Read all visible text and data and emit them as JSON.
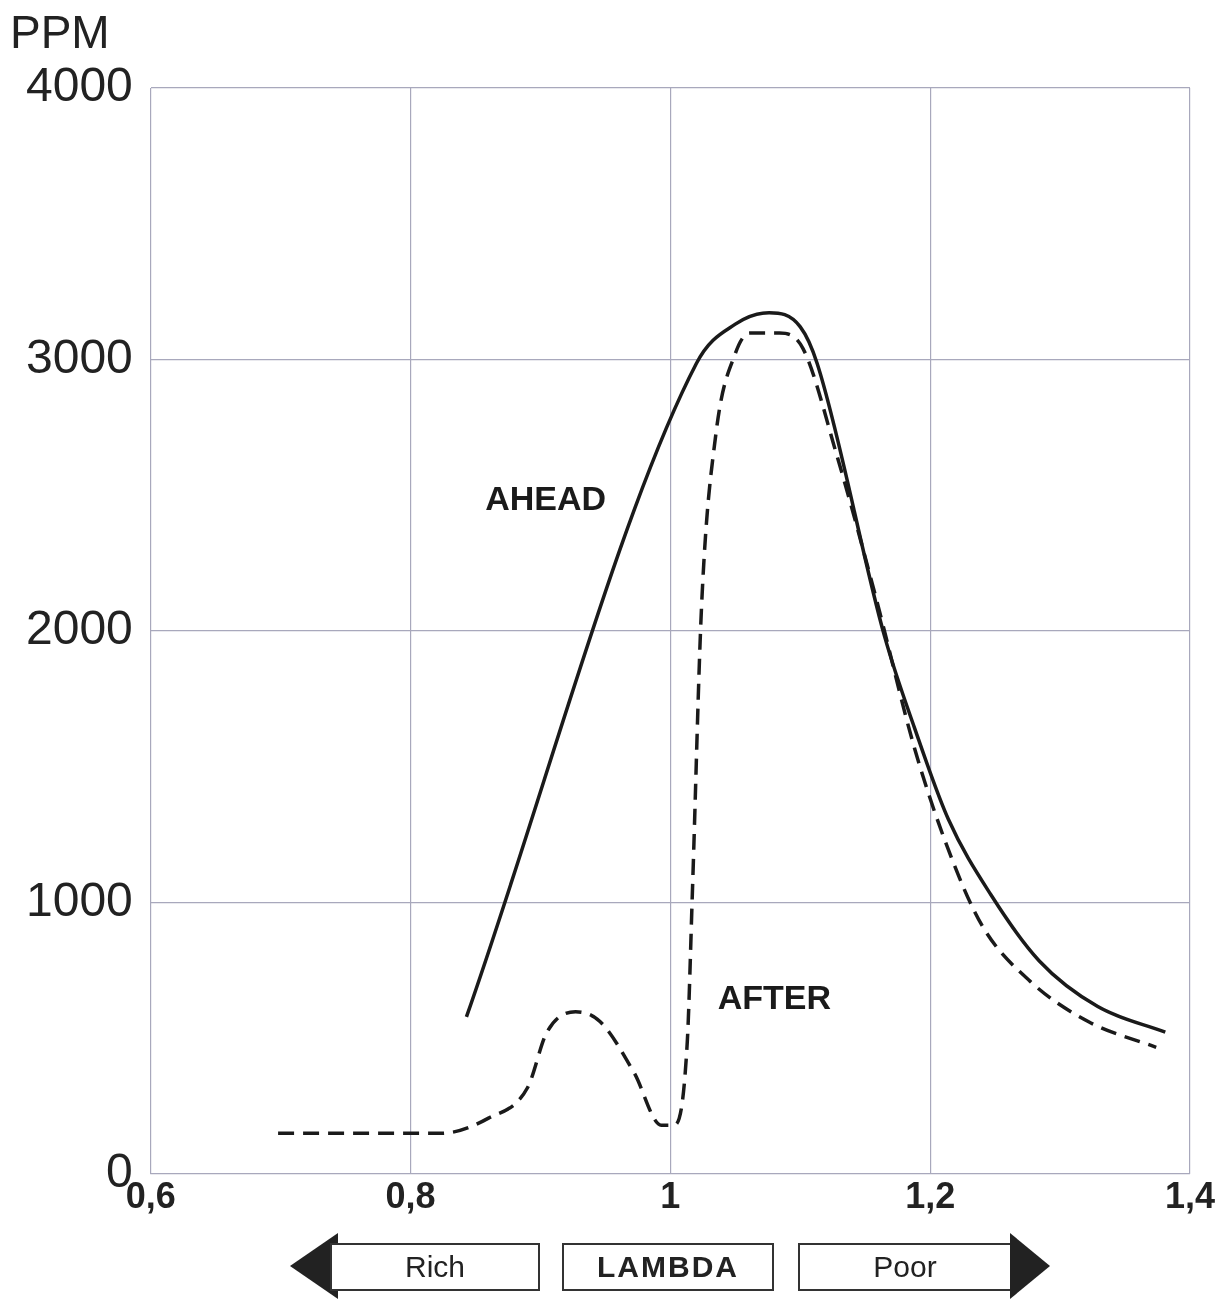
{
  "chart_data": {
    "type": "line",
    "xlabel": "LAMBDA",
    "ylabel": "PPM",
    "xlim": [
      0.6,
      1.4
    ],
    "xticks": [
      {
        "value": 0.6,
        "label": "0,6"
      },
      {
        "value": 0.8,
        "label": "0,8"
      },
      {
        "value": 1,
        "label": "1"
      },
      {
        "value": 1.2,
        "label": "1,2"
      },
      {
        "value": 1.4,
        "label": "1,4"
      }
    ],
    "ylim": [
      0,
      4000
    ],
    "yticks": [
      0,
      1000,
      2000,
      3000,
      4000
    ],
    "grid": true,
    "legend": false,
    "marker": "none",
    "annotations": [
      "Rich",
      "Poor"
    ],
    "series": [
      {
        "name": "AHEAD",
        "color": "#1a1a1a",
        "line_style": "solid",
        "x": [
          0.843,
          1.02,
          1.05,
          1.076,
          1.1,
          1.113,
          1.165,
          1.188,
          1.214,
          1.247,
          1.284,
          1.329,
          1.381
        ],
        "values": [
          578,
          2985,
          3130,
          3172,
          3120,
          2985,
          1978,
          1642,
          1306,
          1026,
          784,
          616,
          522
        ]
      },
      {
        "name": "AFTER",
        "color": "#1a1a1a",
        "line_style": "dashed",
        "x": [
          0.698,
          0.823,
          0.86,
          0.89,
          0.905,
          0.927,
          0.946,
          0.972,
          0.993,
          1.002,
          1.013,
          1.017,
          1.024,
          1.035,
          1.05,
          1.061,
          1.084,
          1.102,
          1.128,
          1.158,
          1.188,
          1.214,
          1.24,
          1.277,
          1.322,
          1.374
        ],
        "values": [
          149,
          149,
          205,
          317,
          522,
          597,
          560,
          373,
          179,
          179,
          485,
          1045,
          2090,
          2724,
          3022,
          3097,
          3097,
          3041,
          2649,
          2127,
          1567,
          1194,
          914,
          709,
          560,
          466
        ]
      }
    ]
  }
}
